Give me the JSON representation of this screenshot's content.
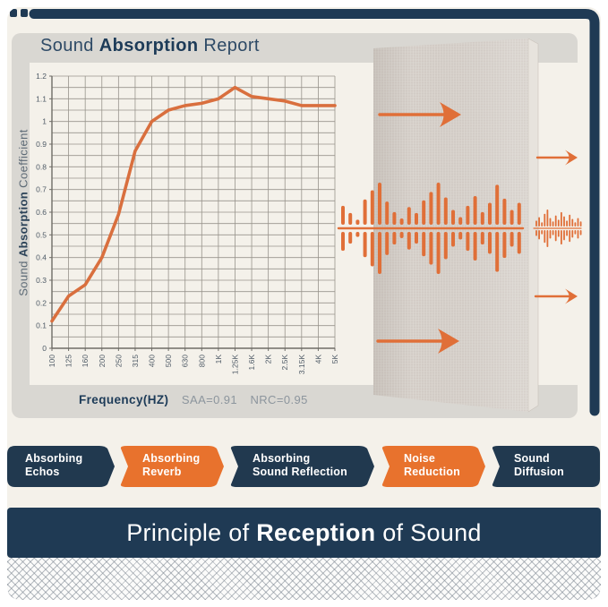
{
  "colors": {
    "navy": "#1f3a54",
    "orange": "#e8722d",
    "line_orange": "#d96f3e",
    "cream": "#f4f1ea",
    "container_gray": "#d9d7d2",
    "board_beige": "#d6d0ca",
    "grid": "#98948c",
    "axis": "#6e6c66",
    "tick_text": "#4e5a66"
  },
  "header": {
    "title_pre": "Sound ",
    "title_bold": "Absorption",
    "title_post": " Report"
  },
  "chart_data": {
    "type": "line",
    "title": "Sound Absorption Report",
    "xlabel": "Frequency(HZ)",
    "ylabel": "Sound Absorption Coefficient",
    "ylabel_pre": "Sound ",
    "ylabel_bold": "Absorption",
    "ylabel_post": " Coefficient",
    "categories": [
      "100",
      "125",
      "160",
      "200",
      "250",
      "315",
      "400",
      "500",
      "630",
      "800",
      "1K",
      "1.25K",
      "1.6K",
      "2K",
      "2.5K",
      "3.15K",
      "4K",
      "5K"
    ],
    "values": [
      0.12,
      0.23,
      0.28,
      0.4,
      0.59,
      0.87,
      1.0,
      1.05,
      1.07,
      1.08,
      1.1,
      1.15,
      1.11,
      1.1,
      1.09,
      1.07,
      1.07,
      1.07
    ],
    "y_ticks": [
      "1.2",
      "1.1",
      "1",
      "0.9",
      "0.8",
      "0.7",
      "0.6",
      "0.5",
      "0.4",
      "0.3",
      "0.2",
      "0.1",
      "0"
    ],
    "ylim": [
      0,
      1.2
    ],
    "minor_step": 0.05,
    "grid": true,
    "legend": false,
    "line_color": "#d96f3e",
    "stats": {
      "saa": "SAA=0.91",
      "nrc": "NRC=0.95"
    }
  },
  "caption": {
    "xlabel": "Frequency(HZ)",
    "saa": "SAA=0.91",
    "nrc": "NRC=0.95"
  },
  "banners": [
    {
      "line1": "Absorbing",
      "line2": "Echos",
      "color": "navy"
    },
    {
      "line1": "Absorbing",
      "line2": "Reverb",
      "color": "orange"
    },
    {
      "line1": "Absorbing",
      "line2": "Sound Reflection",
      "color": "navy"
    },
    {
      "line1": "Noise",
      "line2": "Reduction",
      "color": "orange"
    },
    {
      "line1": "Sound",
      "line2": "Diffusion",
      "color": "navy"
    }
  ],
  "bottom_banner": {
    "pre": "Principle of ",
    "bold": "Reception",
    "post": " of Sound"
  },
  "illustration": {
    "panel": "acoustic-panel",
    "arrows": [
      "incoming-top",
      "incoming-bottom",
      "outgoing-top",
      "outgoing-bottom"
    ],
    "wave_big": [
      0.45,
      0.28,
      0.12,
      0.6,
      0.82,
      1.0,
      0.55,
      0.3,
      0.15,
      0.42,
      0.28,
      0.58,
      0.78,
      1.0,
      0.65,
      0.35,
      0.18,
      0.45,
      0.68,
      0.3,
      0.52,
      0.95,
      0.62,
      0.35,
      0.52
    ],
    "wave_small": [
      0.35,
      0.55,
      0.25,
      0.75,
      1.0,
      0.5,
      0.3,
      0.65,
      0.4,
      0.85,
      0.6,
      0.35,
      0.7,
      0.45,
      0.25,
      0.5,
      0.3
    ]
  }
}
